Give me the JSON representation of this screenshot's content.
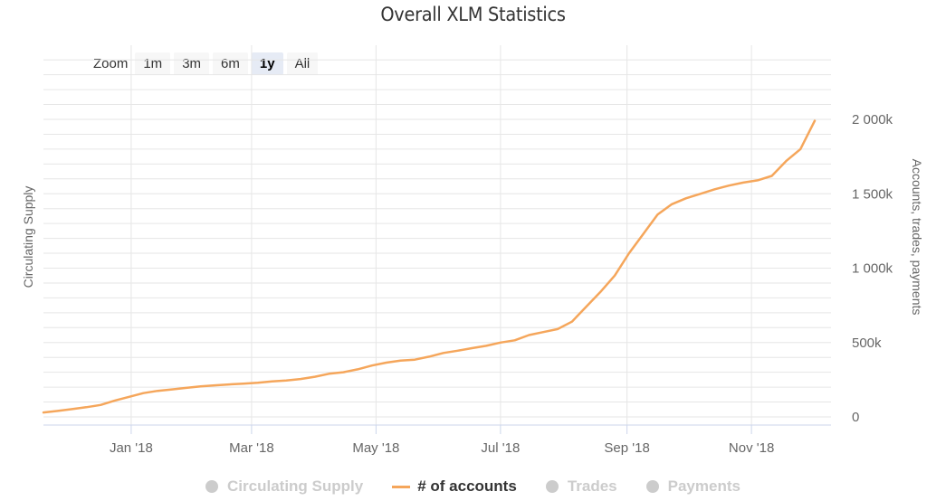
{
  "title": "Overall XLM Statistics",
  "zoom": {
    "label": "Zoom",
    "buttons": [
      "1m",
      "3m",
      "6m",
      "1y",
      "All"
    ],
    "active": "1y"
  },
  "colors": {
    "series": "#f5a65b",
    "grid": "#e6e6e6",
    "hidden": "#cccccc"
  },
  "chart_data": {
    "type": "line",
    "title": "Overall XLM Statistics",
    "left_axis_label": "Circulating Supply",
    "right_axis_label": "Accounts, trades, payments",
    "right_axis_ticks": [
      "0",
      "500k",
      "1 000k",
      "1 500k",
      "2 000k"
    ],
    "y_ticks": [
      0,
      500000,
      1000000,
      1500000,
      2000000
    ],
    "ylim": [
      0,
      2000000
    ],
    "x_ticks": [
      {
        "label": "Jan '18",
        "date": "2018-01-01"
      },
      {
        "label": "Mar '18",
        "date": "2018-03-01"
      },
      {
        "label": "May '18",
        "date": "2018-05-01"
      },
      {
        "label": "Jul '18",
        "date": "2018-07-01"
      },
      {
        "label": "Sep '18",
        "date": "2018-09-01"
      },
      {
        "label": "Nov '18",
        "date": "2018-11-01"
      }
    ],
    "xlim": [
      "2017-11-19",
      "2018-12-10"
    ],
    "grid": true,
    "legend_position": "bottom",
    "series": [
      {
        "name": "# of accounts",
        "visible": true,
        "points": [
          [
            "2017-11-19",
            30000
          ],
          [
            "2017-11-26",
            40000
          ],
          [
            "2017-12-03",
            52000
          ],
          [
            "2017-12-10",
            65000
          ],
          [
            "2017-12-17",
            80000
          ],
          [
            "2017-12-24",
            110000
          ],
          [
            "2017-12-31",
            135000
          ],
          [
            "2018-01-07",
            160000
          ],
          [
            "2018-01-14",
            175000
          ],
          [
            "2018-01-21",
            185000
          ],
          [
            "2018-01-28",
            195000
          ],
          [
            "2018-02-04",
            205000
          ],
          [
            "2018-02-11",
            212000
          ],
          [
            "2018-02-18",
            218000
          ],
          [
            "2018-02-25",
            224000
          ],
          [
            "2018-03-04",
            230000
          ],
          [
            "2018-03-11",
            238000
          ],
          [
            "2018-03-18",
            245000
          ],
          [
            "2018-03-25",
            255000
          ],
          [
            "2018-04-01",
            270000
          ],
          [
            "2018-04-08",
            290000
          ],
          [
            "2018-04-15",
            300000
          ],
          [
            "2018-04-22",
            320000
          ],
          [
            "2018-04-29",
            345000
          ],
          [
            "2018-05-06",
            365000
          ],
          [
            "2018-05-13",
            378000
          ],
          [
            "2018-05-20",
            385000
          ],
          [
            "2018-05-27",
            405000
          ],
          [
            "2018-06-03",
            430000
          ],
          [
            "2018-06-10",
            445000
          ],
          [
            "2018-06-17",
            462000
          ],
          [
            "2018-06-24",
            478000
          ],
          [
            "2018-07-01",
            500000
          ],
          [
            "2018-07-08",
            515000
          ],
          [
            "2018-07-15",
            550000
          ],
          [
            "2018-07-22",
            570000
          ],
          [
            "2018-07-29",
            590000
          ],
          [
            "2018-08-05",
            640000
          ],
          [
            "2018-08-12",
            740000
          ],
          [
            "2018-08-19",
            840000
          ],
          [
            "2018-08-26",
            950000
          ],
          [
            "2018-09-02",
            1100000
          ],
          [
            "2018-09-09",
            1230000
          ],
          [
            "2018-09-16",
            1360000
          ],
          [
            "2018-09-23",
            1430000
          ],
          [
            "2018-09-30",
            1470000
          ],
          [
            "2018-10-07",
            1500000
          ],
          [
            "2018-10-14",
            1530000
          ],
          [
            "2018-10-21",
            1555000
          ],
          [
            "2018-10-28",
            1575000
          ],
          [
            "2018-11-04",
            1590000
          ],
          [
            "2018-11-11",
            1620000
          ],
          [
            "2018-11-18",
            1720000
          ],
          [
            "2018-11-25",
            1800000
          ],
          [
            "2018-12-02",
            1990000
          ]
        ]
      }
    ]
  },
  "legend": [
    {
      "label": "Circulating Supply",
      "visible": false
    },
    {
      "label": "# of accounts",
      "visible": true
    },
    {
      "label": "Trades",
      "visible": false
    },
    {
      "label": "Payments",
      "visible": false
    }
  ]
}
